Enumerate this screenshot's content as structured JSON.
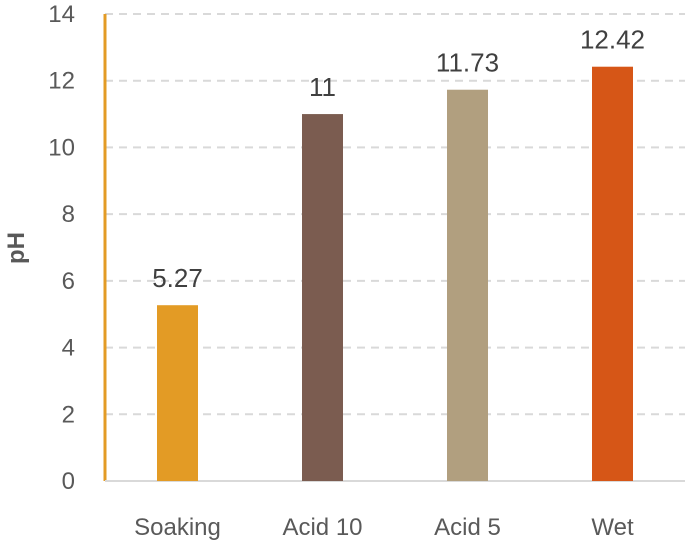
{
  "chart_data": {
    "type": "bar",
    "categories": [
      "Soaking",
      "Acid 10",
      "Acid 5",
      "Wet"
    ],
    "values": [
      5.27,
      11,
      11.73,
      12.42
    ],
    "data_labels": [
      "5.27",
      "11",
      "11.73",
      "12.42"
    ],
    "colors": [
      "#E39B25",
      "#7B5C50",
      "#B19F7F",
      "#D65617"
    ],
    "title": "",
    "xlabel": "",
    "ylabel": "pH",
    "ylim": [
      0,
      14
    ],
    "yticks": [
      0,
      2,
      4,
      6,
      8,
      10,
      12,
      14
    ],
    "grid": true,
    "grid_style": "dashed",
    "axis_color": "#E39B25",
    "legend": "none"
  }
}
